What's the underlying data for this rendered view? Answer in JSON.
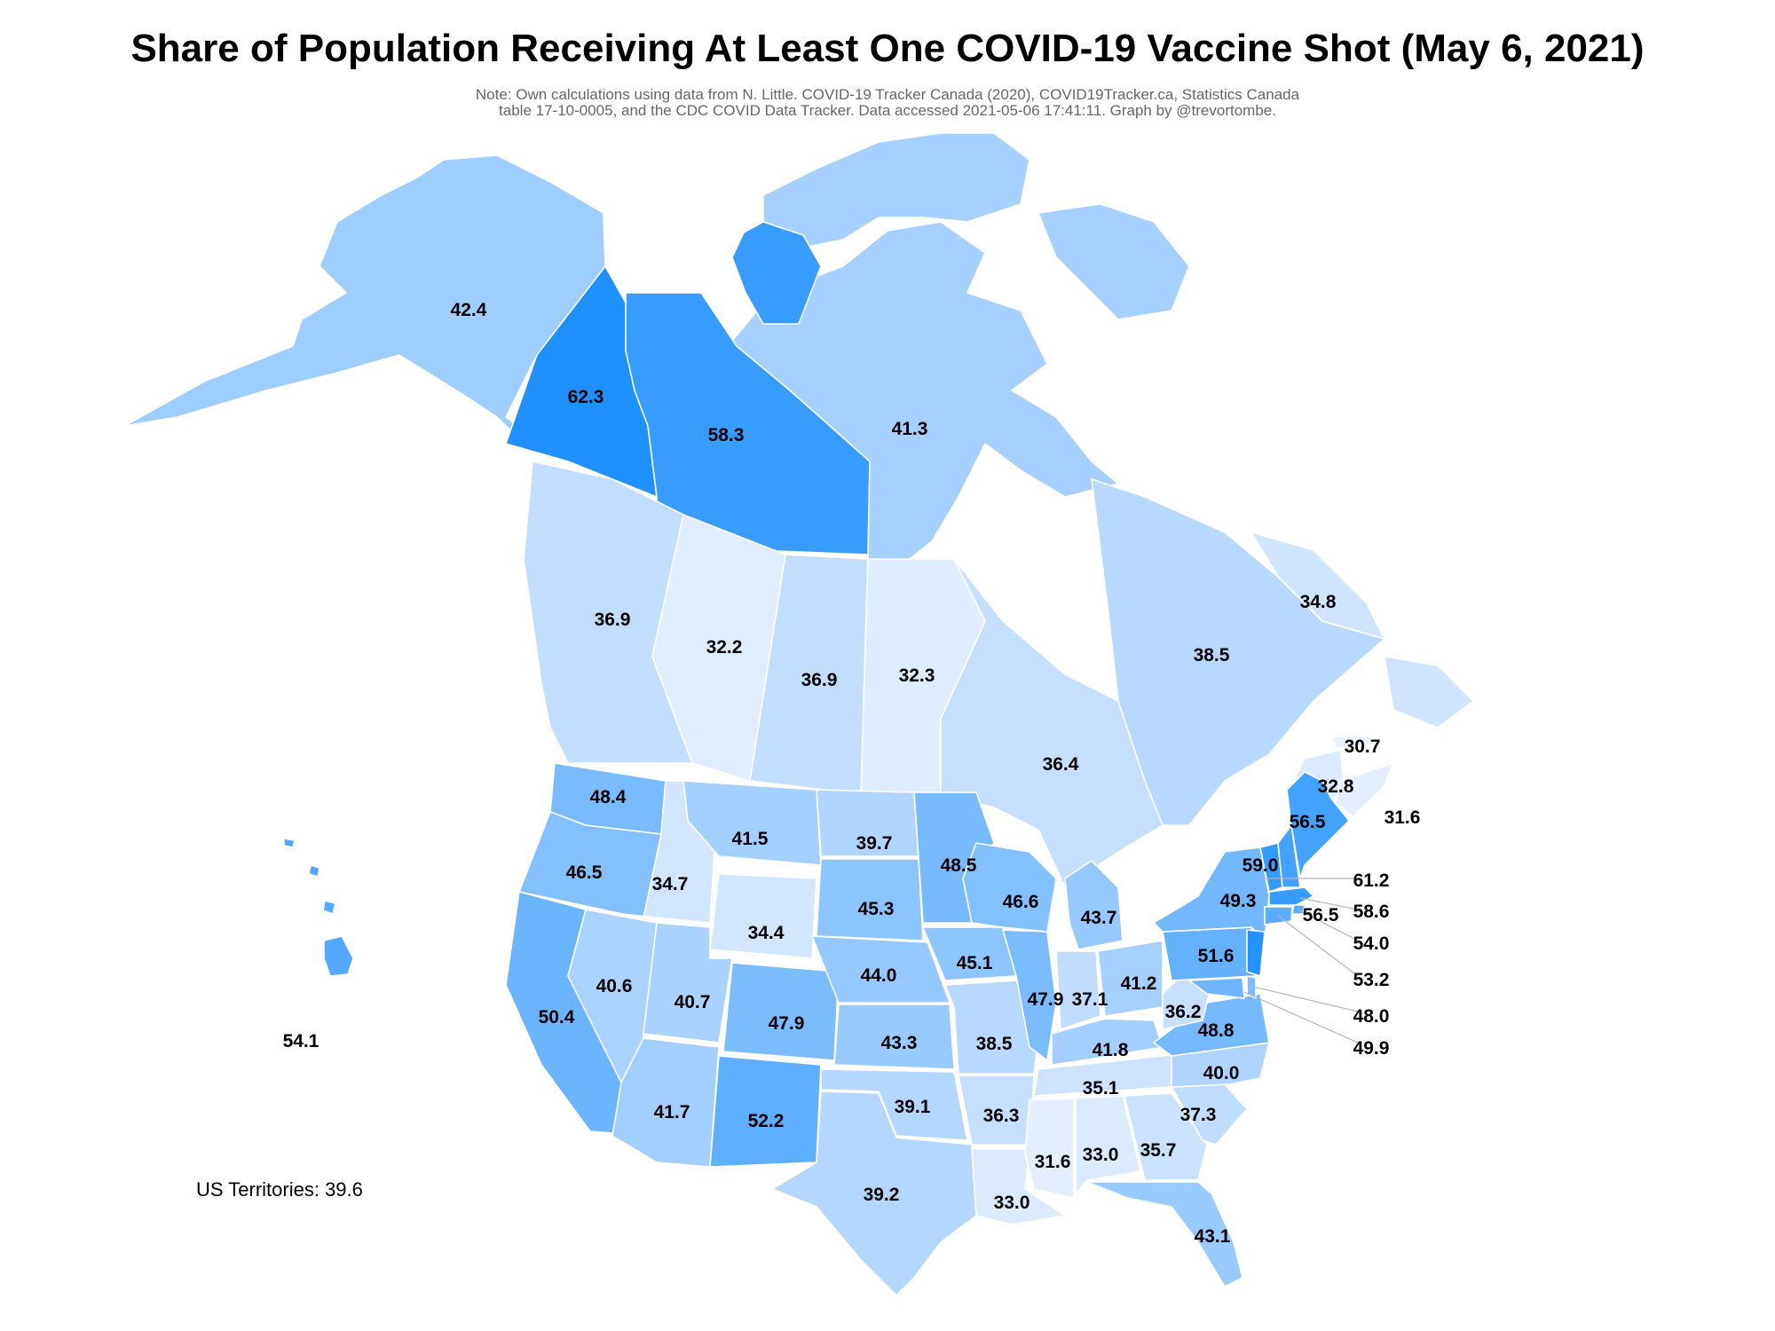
{
  "title": "Share of Population Receiving At Least One COVID-19 Vaccine Shot (May 6, 2021)",
  "note_line1": "Note: Own calculations using data from N. Little. COVID-19 Tracker Canada (2020), COVID19Tracker.ca, Statistics Canada",
  "note_line2": "table 17-10-0005, and the CDC COVID Data Tracker. Data accessed 2021-05-06 17:41:11. Graph by @trevortombe.",
  "territories_label": "US Territories: 39.6",
  "color_scale": {
    "low": "#eef3ff",
    "high": "#1e90ff",
    "min": 30,
    "max": 62.3
  },
  "regions": {
    "yukon": 62.3,
    "northwest_territories": 58.3,
    "nunavut": 41.3,
    "alaska": 42.4,
    "british_columbia": 36.9,
    "alberta": 32.2,
    "saskatchewan": 36.9,
    "manitoba": 32.3,
    "ontario": 36.4,
    "quebec": 38.5,
    "newfoundland_labrador": 34.8,
    "new_brunswick": 32.8,
    "prince_edward_island": 30.7,
    "nova_scotia": 31.6,
    "washington": 48.4,
    "oregon": 46.5,
    "california": 50.4,
    "idaho": 34.7,
    "nevada": 40.6,
    "montana": 41.5,
    "wyoming": 34.4,
    "utah": 40.7,
    "arizona": 41.7,
    "colorado": 47.9,
    "new_mexico": 52.2,
    "north_dakota": 39.7,
    "south_dakota": 45.3,
    "nebraska": 44.0,
    "kansas": 43.3,
    "oklahoma": 39.1,
    "texas": 39.2,
    "minnesota": 48.5,
    "iowa": 45.1,
    "missouri": 38.5,
    "arkansas": 36.3,
    "louisiana": 33.0,
    "wisconsin": 46.6,
    "illinois": 47.9,
    "michigan": 43.7,
    "indiana": 37.1,
    "ohio": 41.2,
    "kentucky": 41.8,
    "tennessee": 35.1,
    "mississippi": 31.6,
    "alabama": 33.0,
    "georgia": 35.7,
    "florida": 43.1,
    "south_carolina": 37.3,
    "north_carolina": 40.0,
    "virginia": 48.8,
    "west_virginia": 36.2,
    "pennsylvania": 51.6,
    "new_york": 49.3,
    "vermont": 59.0,
    "new_hampshire": 56.5,
    "maine": 56.5,
    "massachusetts": 58.6,
    "rhode_island": 54.0,
    "connecticut": 53.2,
    "new_jersey": 61.2,
    "delaware": 48.0,
    "maryland": 49.9,
    "hawaii": 54.1
  },
  "labels": {
    "yukon": "62.3",
    "northwest_territories": "58.3",
    "nunavut": "41.3",
    "alaska": "42.4",
    "british_columbia": "36.9",
    "alberta": "32.2",
    "saskatchewan": "36.9",
    "manitoba": "32.3",
    "ontario": "36.4",
    "quebec": "38.5",
    "newfoundland_labrador": "34.8",
    "new_brunswick": "32.8",
    "prince_edward_island": "30.7",
    "nova_scotia": "31.6",
    "washington": "48.4",
    "oregon": "46.5",
    "california": "50.4",
    "idaho": "34.7",
    "nevada": "40.6",
    "montana": "41.5",
    "wyoming": "34.4",
    "utah": "40.7",
    "arizona": "41.7",
    "colorado": "47.9",
    "new_mexico": "52.2",
    "north_dakota": "39.7",
    "south_dakota": "45.3",
    "nebraska": "44.0",
    "kansas": "43.3",
    "oklahoma": "39.1",
    "texas": "39.2",
    "minnesota": "48.5",
    "iowa": "45.1",
    "missouri": "38.5",
    "arkansas": "36.3",
    "louisiana": "33.0",
    "wisconsin": "46.6",
    "illinois": "47.9",
    "michigan": "43.7",
    "indiana": "37.1",
    "ohio": "41.2",
    "kentucky": "41.8",
    "tennessee": "35.1",
    "mississippi": "31.6",
    "alabama": "33.0",
    "georgia": "35.7",
    "florida": "43.1",
    "south_carolina": "37.3",
    "north_carolina": "40.0",
    "virginia": "48.8",
    "west_virginia": "36.2",
    "pennsylvania": "51.6",
    "new_york": "49.3",
    "vermont": "59.0",
    "new_hampshire": "56.5",
    "maine": "56.5",
    "new_jersey": "61.2",
    "massachusetts": "58.6",
    "rhode_island": "54.0",
    "connecticut": "53.2",
    "delaware": "48.0",
    "maryland": "49.9",
    "hawaii": "54.1"
  }
}
